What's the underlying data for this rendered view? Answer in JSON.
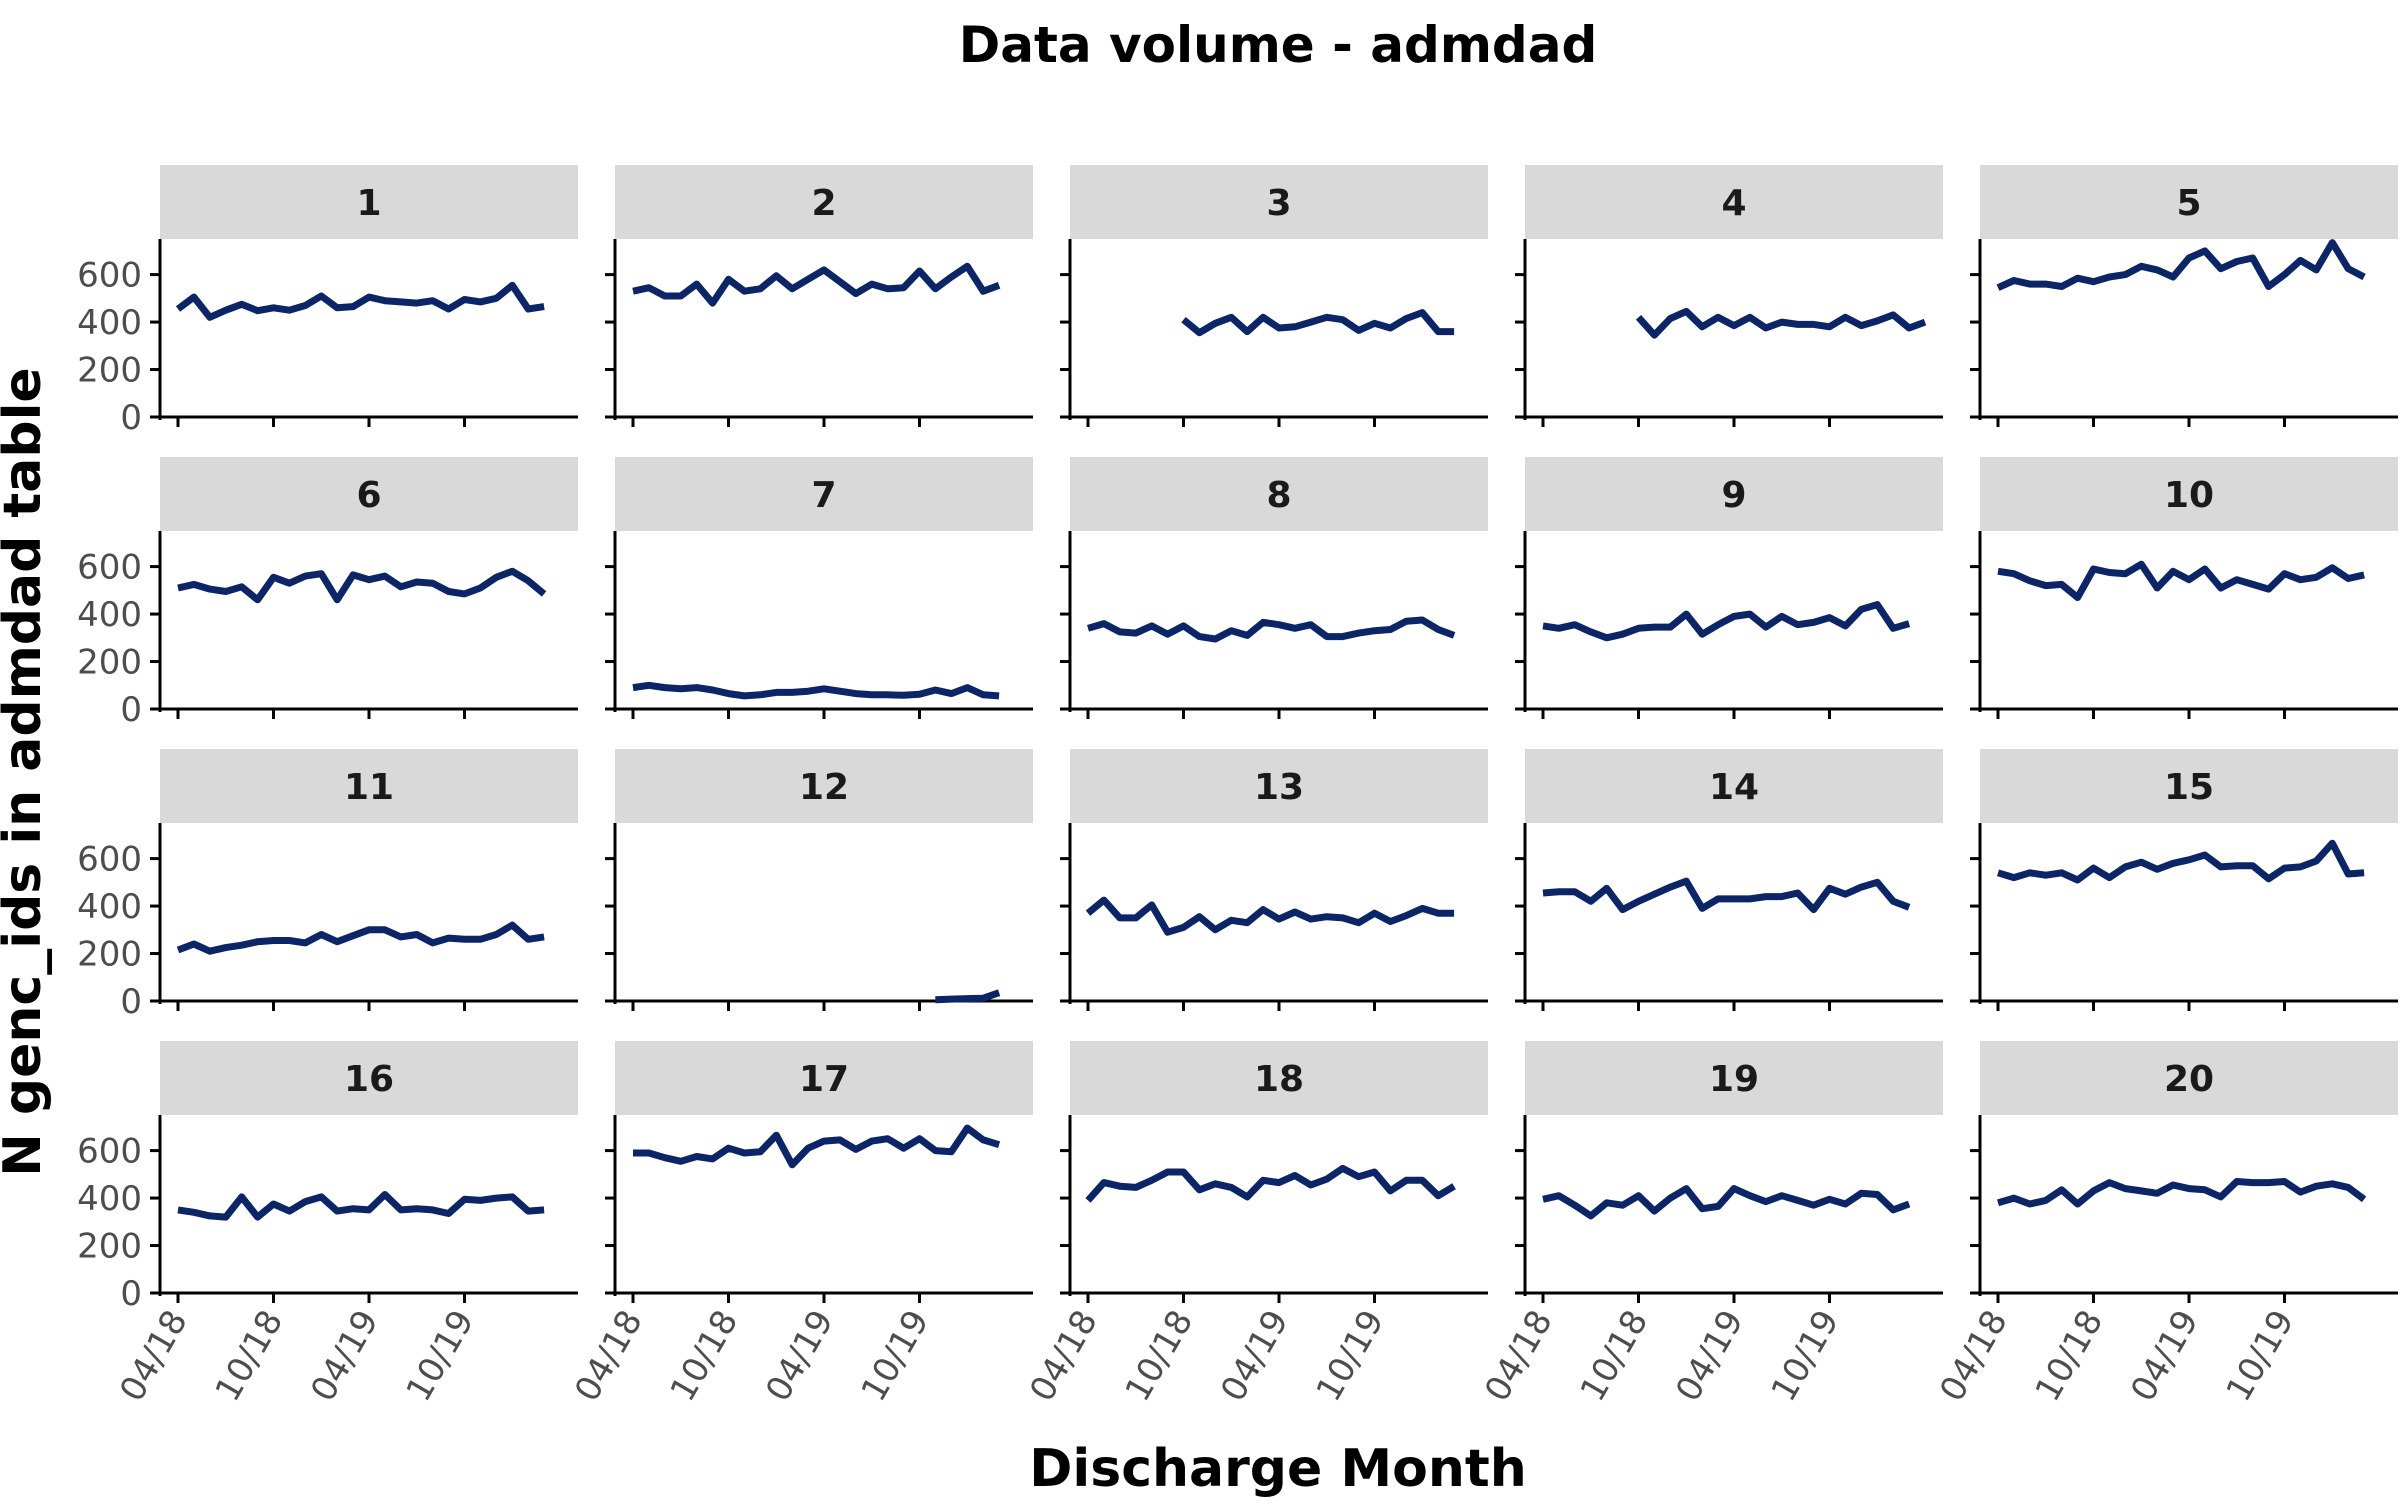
{
  "chart_data": {
    "type": "line",
    "title": "Data volume - admdad",
    "xlabel": "Discharge Month",
    "ylabel": "N genc_ids in admdad table",
    "x_tick_labels": [
      "04/18",
      "10/18",
      "04/19",
      "10/19"
    ],
    "y_tick_labels": [
      "0",
      "200",
      "400",
      "600"
    ],
    "ylim": [
      0,
      750
    ],
    "x_months": [
      "2018-04",
      "2018-05",
      "2018-06",
      "2018-07",
      "2018-08",
      "2018-09",
      "2018-10",
      "2018-11",
      "2018-12",
      "2019-01",
      "2019-02",
      "2019-03",
      "2019-04",
      "2019-05",
      "2019-06",
      "2019-07",
      "2019-08",
      "2019-09",
      "2019-10",
      "2019-11",
      "2019-12",
      "2020-01",
      "2020-02",
      "2020-03",
      "2020-04"
    ],
    "line_color": "#0b2566",
    "facets": [
      {
        "label": "1",
        "values": [
          455,
          505,
          420,
          450,
          475,
          448,
          460,
          450,
          470,
          510,
          460,
          465,
          505,
          490,
          485,
          480,
          490,
          455,
          495,
          485,
          500,
          555,
          455,
          465,
          null
        ]
      },
      {
        "label": "2",
        "values": [
          530,
          545,
          510,
          510,
          560,
          480,
          580,
          530,
          540,
          595,
          540,
          580,
          620,
          570,
          520,
          560,
          540,
          545,
          615,
          540,
          590,
          635,
          530,
          555,
          null
        ]
      },
      {
        "label": "3",
        "values": [
          null,
          null,
          null,
          null,
          null,
          null,
          410,
          355,
          395,
          420,
          360,
          420,
          375,
          380,
          400,
          420,
          410,
          365,
          395,
          375,
          415,
          440,
          360,
          360,
          null
        ]
      },
      {
        "label": "4",
        "values": [
          null,
          null,
          null,
          null,
          null,
          null,
          420,
          345,
          415,
          445,
          380,
          420,
          385,
          420,
          375,
          400,
          390,
          390,
          380,
          420,
          385,
          405,
          430,
          375,
          400
        ]
      },
      {
        "label": "5",
        "values": [
          545,
          575,
          560,
          560,
          550,
          585,
          570,
          590,
          600,
          635,
          620,
          590,
          670,
          700,
          625,
          655,
          670,
          550,
          600,
          660,
          620,
          735,
          625,
          590,
          null
        ]
      },
      {
        "label": "6",
        "values": [
          510,
          525,
          505,
          495,
          515,
          460,
          555,
          530,
          560,
          570,
          460,
          565,
          545,
          560,
          515,
          535,
          530,
          495,
          485,
          510,
          555,
          580,
          540,
          485,
          null
        ]
      },
      {
        "label": "7",
        "values": [
          90,
          100,
          90,
          85,
          90,
          80,
          65,
          55,
          60,
          70,
          70,
          75,
          85,
          75,
          65,
          60,
          60,
          58,
          62,
          80,
          65,
          90,
          60,
          55,
          null
        ]
      },
      {
        "label": "8",
        "values": [
          340,
          360,
          325,
          320,
          350,
          315,
          350,
          305,
          295,
          330,
          310,
          365,
          355,
          340,
          355,
          305,
          305,
          320,
          330,
          335,
          370,
          375,
          335,
          310,
          null
        ]
      },
      {
        "label": "9",
        "values": [
          350,
          340,
          355,
          325,
          300,
          315,
          340,
          345,
          345,
          400,
          315,
          355,
          390,
          400,
          345,
          390,
          355,
          365,
          385,
          350,
          420,
          440,
          340,
          360,
          null
        ]
      },
      {
        "label": "10",
        "values": [
          580,
          570,
          540,
          520,
          525,
          470,
          590,
          575,
          570,
          610,
          510,
          580,
          545,
          590,
          510,
          545,
          525,
          505,
          570,
          545,
          555,
          595,
          550,
          565,
          null
        ]
      },
      {
        "label": "11",
        "values": [
          215,
          240,
          210,
          225,
          235,
          250,
          255,
          255,
          245,
          280,
          250,
          275,
          300,
          300,
          270,
          280,
          245,
          265,
          260,
          260,
          280,
          320,
          260,
          270,
          null
        ]
      },
      {
        "label": "12",
        "values": [
          null,
          null,
          null,
          null,
          null,
          null,
          null,
          null,
          null,
          null,
          null,
          null,
          null,
          null,
          null,
          null,
          null,
          null,
          null,
          5,
          8,
          10,
          12,
          35,
          null
        ]
      },
      {
        "label": "13",
        "values": [
          370,
          425,
          350,
          350,
          405,
          290,
          310,
          355,
          300,
          340,
          330,
          385,
          345,
          375,
          345,
          355,
          350,
          330,
          370,
          335,
          360,
          390,
          370,
          370,
          null
        ]
      },
      {
        "label": "14",
        "values": [
          455,
          460,
          460,
          420,
          475,
          385,
          420,
          450,
          480,
          505,
          390,
          430,
          430,
          430,
          440,
          440,
          455,
          385,
          475,
          450,
          480,
          500,
          420,
          395,
          null
        ]
      },
      {
        "label": "15",
        "values": [
          540,
          520,
          540,
          530,
          540,
          510,
          560,
          520,
          565,
          585,
          555,
          580,
          595,
          615,
          565,
          570,
          570,
          515,
          560,
          565,
          590,
          665,
          535,
          540,
          null
        ]
      },
      {
        "label": "16",
        "values": [
          350,
          340,
          325,
          320,
          405,
          320,
          375,
          345,
          385,
          405,
          345,
          355,
          350,
          415,
          350,
          355,
          350,
          335,
          395,
          390,
          400,
          405,
          345,
          350,
          null
        ]
      },
      {
        "label": "17",
        "values": [
          590,
          590,
          570,
          555,
          575,
          565,
          610,
          590,
          595,
          665,
          540,
          610,
          640,
          645,
          605,
          640,
          650,
          610,
          650,
          600,
          595,
          695,
          645,
          625,
          null
        ]
      },
      {
        "label": "18",
        "values": [
          390,
          465,
          450,
          445,
          475,
          510,
          510,
          435,
          460,
          445,
          405,
          475,
          465,
          495,
          455,
          480,
          525,
          490,
          510,
          430,
          475,
          475,
          410,
          450,
          null
        ]
      },
      {
        "label": "19",
        "values": [
          395,
          410,
          370,
          325,
          380,
          370,
          410,
          345,
          400,
          440,
          355,
          365,
          440,
          410,
          385,
          410,
          390,
          370,
          395,
          375,
          420,
          415,
          350,
          375,
          null
        ]
      },
      {
        "label": "20",
        "values": [
          380,
          400,
          375,
          390,
          435,
          375,
          430,
          465,
          440,
          430,
          420,
          455,
          440,
          435,
          405,
          470,
          465,
          465,
          470,
          425,
          450,
          460,
          445,
          395,
          null
        ]
      }
    ]
  }
}
